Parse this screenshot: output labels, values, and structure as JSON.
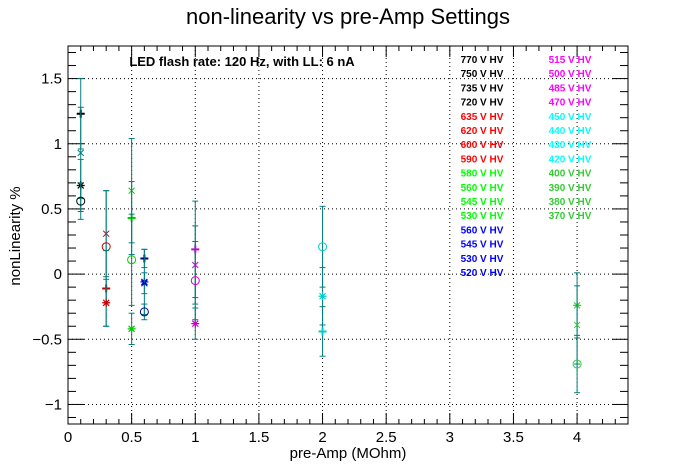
{
  "chart_data": {
    "type": "scatter",
    "title": "non-linearity vs pre-Amp Settings",
    "xlabel": "pre-Amp (MOhm)",
    "ylabel": "nonLinearity %",
    "xlim": [
      0,
      4.4
    ],
    "ylim": [
      -1.15,
      1.75
    ],
    "xticks": [
      "0",
      "0.5",
      "1",
      "1.5",
      "2",
      "2.5",
      "3",
      "3.5",
      "4"
    ],
    "yticks": [
      "−1",
      "−0.5",
      "0",
      "0.5",
      "1",
      "1.5"
    ],
    "grid": true,
    "annotation": "LED flash rate: 120 Hz, with LL: 6 nA",
    "legend_columns": [
      [
        {
          "label": "770 V HV",
          "color": "#000000"
        },
        {
          "label": "750 V HV",
          "color": "#000000"
        },
        {
          "label": "735 V HV",
          "color": "#000000"
        },
        {
          "label": "720 V HV",
          "color": "#000000"
        },
        {
          "label": "635 V HV",
          "color": "#ff0000"
        },
        {
          "label": "620 V HV",
          "color": "#ff0000"
        },
        {
          "label": "600 V HV",
          "color": "#ff0000"
        },
        {
          "label": "590 V HV",
          "color": "#ff0000"
        },
        {
          "label": "580 V HV",
          "color": "#00ff00"
        },
        {
          "label": "560 V HV",
          "color": "#00ff00"
        },
        {
          "label": "545 V HV",
          "color": "#00ff00"
        },
        {
          "label": "530 V HV",
          "color": "#00ff00"
        },
        {
          "label": "560 V HV",
          "color": "#0000ff"
        },
        {
          "label": "545 V HV",
          "color": "#0000ff"
        },
        {
          "label": "530 V HV",
          "color": "#0000ff"
        },
        {
          "label": "520 V HV",
          "color": "#0000ff"
        }
      ],
      [
        {
          "label": "515 V HV",
          "color": "#ff00ff"
        },
        {
          "label": "500 V HV",
          "color": "#ff00ff"
        },
        {
          "label": "485 V HV",
          "color": "#ff00ff"
        },
        {
          "label": "470 V HV",
          "color": "#ff00ff"
        },
        {
          "label": "450 V HV",
          "color": "#00ffff"
        },
        {
          "label": "440 V HV",
          "color": "#00ffff"
        },
        {
          "label": "430 V HV",
          "color": "#00ffff"
        },
        {
          "label": "420 V HV",
          "color": "#00ffff"
        },
        {
          "label": "400 V HV",
          "color": "#33cc33"
        },
        {
          "label": "390 V HV",
          "color": "#33cc33"
        },
        {
          "label": "380 V HV",
          "color": "#33cc33"
        },
        {
          "label": "370 V HV",
          "color": "#33cc33"
        }
      ]
    ],
    "series": [
      {
        "marker": "plus",
        "color": "#000000",
        "x": 0.1,
        "y": 1.23,
        "yerr": 0.27
      },
      {
        "marker": "cross",
        "color": "#007f7f",
        "x": 0.1,
        "y": 0.93,
        "yerr": 0.35
      },
      {
        "marker": "star",
        "color": "#000000",
        "x": 0.1,
        "y": 0.68,
        "yerr": 0.2
      },
      {
        "marker": "circle",
        "color": "#000000",
        "x": 0.1,
        "y": 0.56,
        "yerr": 0.14
      },
      {
        "marker": "cross",
        "color": "#cc0000",
        "x": 0.3,
        "y": 0.31,
        "yerr": 0.33
      },
      {
        "marker": "circle",
        "color": "#cc0000",
        "x": 0.3,
        "y": 0.21,
        "yerr": 0.43
      },
      {
        "marker": "plus",
        "color": "#cc0000",
        "x": 0.3,
        "y": -0.11,
        "yerr": 0.29
      },
      {
        "marker": "star",
        "color": "#cc0000",
        "x": 0.3,
        "y": -0.22,
        "yerr": 0.18
      },
      {
        "marker": "cross",
        "color": "#00cc00",
        "x": 0.5,
        "y": 0.64,
        "yerr": 0.4
      },
      {
        "marker": "plus",
        "color": "#00cc00",
        "x": 0.5,
        "y": 0.43,
        "yerr": 0.28
      },
      {
        "marker": "circle",
        "color": "#00cc00",
        "x": 0.5,
        "y": 0.11,
        "yerr": 0.35
      },
      {
        "marker": "star",
        "color": "#00cc00",
        "x": 0.5,
        "y": -0.42,
        "yerr": 0.12
      },
      {
        "marker": "plus",
        "color": "#000088",
        "x": 0.6,
        "y": 0.12,
        "yerr": 0.07
      },
      {
        "marker": "star",
        "color": "#0000cc",
        "x": 0.6,
        "y": -0.06,
        "yerr": 0.25
      },
      {
        "marker": "cross",
        "color": "#0000cc",
        "x": 0.6,
        "y": -0.07,
        "yerr": 0.08
      },
      {
        "marker": "circle",
        "color": "#000088",
        "x": 0.6,
        "y": -0.29,
        "yerr": 0.06
      },
      {
        "marker": "plus",
        "color": "#cc00cc",
        "x": 1.0,
        "y": 0.19,
        "yerr": 0.37
      },
      {
        "marker": "cross",
        "color": "#cc00cc",
        "x": 1.0,
        "y": 0.07,
        "yerr": 0.3
      },
      {
        "marker": "circle",
        "color": "#cc00cc",
        "x": 1.0,
        "y": -0.05,
        "yerr": 0.3
      },
      {
        "marker": "star",
        "color": "#cc00cc",
        "x": 1.0,
        "y": -0.38,
        "yerr": 0.12
      },
      {
        "marker": "circle",
        "color": "#00cccc",
        "x": 2.0,
        "y": 0.21,
        "yerr": 0.31
      },
      {
        "marker": "star",
        "color": "#00cccc",
        "x": 2.0,
        "y": -0.17,
        "yerr": 0.22
      },
      {
        "marker": "plus",
        "color": "#00cccc",
        "x": 2.0,
        "y": -0.44,
        "yerr": 0.19
      },
      {
        "marker": "star",
        "color": "#33cc33",
        "x": 4.0,
        "y": -0.24,
        "yerr": 0.25
      },
      {
        "marker": "cross",
        "color": "#33cc33",
        "x": 4.0,
        "y": -0.39,
        "yerr": 0.3
      },
      {
        "marker": "circle",
        "color": "#33cc33",
        "x": 4.0,
        "y": -0.69,
        "yerr": 0.22
      }
    ]
  }
}
